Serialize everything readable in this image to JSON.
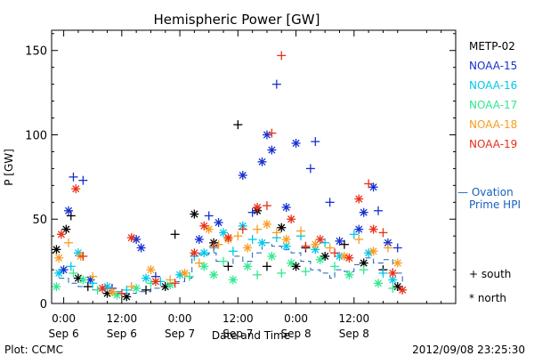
{
  "chart_data": {
    "type": "scatter",
    "title": "Hemispheric Power [GW]",
    "ylabel": "P [GW]",
    "xlabel": "Date and Time",
    "ylim": [
      0,
      162
    ],
    "xlim_hours": [
      -2.5,
      81
    ],
    "yticks": [
      0,
      50,
      100,
      150
    ],
    "xticks": [
      {
        "hour": 0,
        "time": "0:00",
        "date": "Sep 6"
      },
      {
        "hour": 12,
        "time": "12:00",
        "date": "Sep 6"
      },
      {
        "hour": 24,
        "time": "0:00",
        "date": "Sep 7"
      },
      {
        "hour": 36,
        "time": "12:00",
        "date": "Sep 7"
      },
      {
        "hour": 48,
        "time": "0:00",
        "date": "Sep 8"
      },
      {
        "hour": 60,
        "time": "12:00",
        "date": "Sep 8"
      }
    ],
    "legend": {
      "placement": "right",
      "satellites": [
        {
          "name": "METP-02",
          "color": "#000000"
        },
        {
          "name": "NOAA-15",
          "color": "#1530d0"
        },
        {
          "name": "NOAA-16",
          "color": "#00c8e8"
        },
        {
          "name": "NOAA-17",
          "color": "#30e890"
        },
        {
          "name": "NOAA-18",
          "color": "#f89c20"
        },
        {
          "name": "NOAA-19",
          "color": "#e83018"
        }
      ],
      "ovation_label": "Ovation Prime HPI",
      "ovation_lines": [
        "— Ovation",
        "Prime HPI"
      ],
      "ovation_color": "#1560c0",
      "markers": [
        {
          "symbol": "+",
          "label": "south"
        },
        {
          "symbol": "*",
          "label": "north"
        }
      ]
    },
    "footer": {
      "left": "Plot: CCMC",
      "right": "2012/09/08 23:25:30"
    },
    "ovation_step": [
      [
        -1,
        15
      ],
      [
        1,
        12
      ],
      [
        3,
        10
      ],
      [
        6,
        8
      ],
      [
        9,
        7
      ],
      [
        12,
        6
      ],
      [
        15,
        7
      ],
      [
        18,
        9
      ],
      [
        21,
        12
      ],
      [
        23,
        13
      ],
      [
        25,
        15
      ],
      [
        26.5,
        30
      ],
      [
        28,
        29
      ],
      [
        30,
        30
      ],
      [
        31.5,
        25
      ],
      [
        33,
        22
      ],
      [
        35,
        28
      ],
      [
        37,
        25
      ],
      [
        39,
        30
      ],
      [
        41,
        36
      ],
      [
        43,
        34
      ],
      [
        45,
        32
      ],
      [
        47,
        30
      ],
      [
        49,
        25
      ],
      [
        51,
        20
      ],
      [
        53,
        18
      ],
      [
        55,
        15
      ],
      [
        56,
        20
      ],
      [
        58,
        19
      ],
      [
        60,
        23
      ],
      [
        62,
        27
      ],
      [
        64,
        24
      ],
      [
        66,
        26
      ],
      [
        68,
        18
      ],
      [
        70,
        12
      ]
    ],
    "series": [
      {
        "name": "METP-02",
        "points": [
          {
            "x": -1.5,
            "y": 32,
            "m": "*"
          },
          {
            "x": 0.5,
            "y": 44,
            "m": "*"
          },
          {
            "x": 1.5,
            "y": 52,
            "m": "+"
          },
          {
            "x": 3,
            "y": 15,
            "m": "*"
          },
          {
            "x": 5,
            "y": 10,
            "m": "+"
          },
          {
            "x": 9,
            "y": 6,
            "m": "*"
          },
          {
            "x": 13,
            "y": 4,
            "m": "*"
          },
          {
            "x": 17,
            "y": 8,
            "m": "+"
          },
          {
            "x": 21,
            "y": 10,
            "m": "*"
          },
          {
            "x": 23,
            "y": 41,
            "m": "+"
          },
          {
            "x": 27,
            "y": 53,
            "m": "*"
          },
          {
            "x": 31,
            "y": 36,
            "m": "*"
          },
          {
            "x": 34,
            "y": 22,
            "m": "+"
          },
          {
            "x": 36,
            "y": 106,
            "m": "+"
          },
          {
            "x": 40,
            "y": 55,
            "m": "*"
          },
          {
            "x": 42,
            "y": 22,
            "m": "+"
          },
          {
            "x": 45,
            "y": 45,
            "m": "*"
          },
          {
            "x": 48,
            "y": 22,
            "m": "*"
          },
          {
            "x": 50,
            "y": 33,
            "m": "+"
          },
          {
            "x": 54,
            "y": 28,
            "m": "*"
          },
          {
            "x": 58,
            "y": 35,
            "m": "+"
          },
          {
            "x": 62,
            "y": 24,
            "m": "*"
          },
          {
            "x": 66,
            "y": 20,
            "m": "+"
          },
          {
            "x": 69,
            "y": 10,
            "m": "*"
          }
        ]
      },
      {
        "name": "NOAA-15",
        "points": [
          {
            "x": 0,
            "y": 20,
            "m": "*"
          },
          {
            "x": 1,
            "y": 55,
            "m": "*"
          },
          {
            "x": 2,
            "y": 75,
            "m": "+"
          },
          {
            "x": 4,
            "y": 73,
            "m": "+"
          },
          {
            "x": 5.5,
            "y": 14,
            "m": "*"
          },
          {
            "x": 10,
            "y": 9,
            "m": "+"
          },
          {
            "x": 15,
            "y": 38,
            "m": "*"
          },
          {
            "x": 16,
            "y": 33,
            "m": "*"
          },
          {
            "x": 19,
            "y": 16,
            "m": "+"
          },
          {
            "x": 28,
            "y": 38,
            "m": "*"
          },
          {
            "x": 30,
            "y": 52,
            "m": "+"
          },
          {
            "x": 32,
            "y": 48,
            "m": "*"
          },
          {
            "x": 37,
            "y": 76,
            "m": "*"
          },
          {
            "x": 39,
            "y": 54,
            "m": "+"
          },
          {
            "x": 41,
            "y": 84,
            "m": "*"
          },
          {
            "x": 42,
            "y": 100,
            "m": "*"
          },
          {
            "x": 43,
            "y": 91,
            "m": "*"
          },
          {
            "x": 44,
            "y": 130,
            "m": "+"
          },
          {
            "x": 46,
            "y": 57,
            "m": "*"
          },
          {
            "x": 48,
            "y": 95,
            "m": "*"
          },
          {
            "x": 51,
            "y": 80,
            "m": "+"
          },
          {
            "x": 52,
            "y": 96,
            "m": "+"
          },
          {
            "x": 55,
            "y": 60,
            "m": "+"
          },
          {
            "x": 57,
            "y": 37,
            "m": "*"
          },
          {
            "x": 61,
            "y": 44,
            "m": "*"
          },
          {
            "x": 62,
            "y": 54,
            "m": "*"
          },
          {
            "x": 64,
            "y": 69,
            "m": "*"
          },
          {
            "x": 65,
            "y": 55,
            "m": "+"
          },
          {
            "x": 67,
            "y": 36,
            "m": "*"
          },
          {
            "x": 69,
            "y": 33,
            "m": "+"
          }
        ]
      },
      {
        "name": "NOAA-16",
        "points": [
          {
            "x": -1,
            "y": 18,
            "m": "*"
          },
          {
            "x": 1.5,
            "y": 22,
            "m": "+"
          },
          {
            "x": 3,
            "y": 30,
            "m": "*"
          },
          {
            "x": 6,
            "y": 12,
            "m": "+"
          },
          {
            "x": 9,
            "y": 10,
            "m": "*"
          },
          {
            "x": 13,
            "y": 8,
            "m": "+"
          },
          {
            "x": 17,
            "y": 15,
            "m": "*"
          },
          {
            "x": 20,
            "y": 13,
            "m": "+"
          },
          {
            "x": 24,
            "y": 17,
            "m": "*"
          },
          {
            "x": 27,
            "y": 28,
            "m": "+"
          },
          {
            "x": 29,
            "y": 30,
            "m": "*"
          },
          {
            "x": 31,
            "y": 33,
            "m": "+"
          },
          {
            "x": 33,
            "y": 42,
            "m": "*"
          },
          {
            "x": 35,
            "y": 31,
            "m": "+"
          },
          {
            "x": 37,
            "y": 46,
            "m": "*"
          },
          {
            "x": 39,
            "y": 38,
            "m": "+"
          },
          {
            "x": 41,
            "y": 36,
            "m": "*"
          },
          {
            "x": 44,
            "y": 39,
            "m": "+"
          },
          {
            "x": 46,
            "y": 34,
            "m": "*"
          },
          {
            "x": 49,
            "y": 40,
            "m": "+"
          },
          {
            "x": 52,
            "y": 32,
            "m": "*"
          },
          {
            "x": 54,
            "y": 36,
            "m": "+"
          },
          {
            "x": 57,
            "y": 28,
            "m": "*"
          },
          {
            "x": 60,
            "y": 41,
            "m": "+"
          },
          {
            "x": 63,
            "y": 30,
            "m": "*"
          },
          {
            "x": 66,
            "y": 18,
            "m": "+"
          },
          {
            "x": 68,
            "y": 14,
            "m": "*"
          }
        ]
      },
      {
        "name": "NOAA-17",
        "points": [
          {
            "x": -1.5,
            "y": 10,
            "m": "*"
          },
          {
            "x": 2,
            "y": 18,
            "m": "+"
          },
          {
            "x": 4,
            "y": 14,
            "m": "*"
          },
          {
            "x": 7,
            "y": 8,
            "m": "+"
          },
          {
            "x": 11,
            "y": 5,
            "m": "*"
          },
          {
            "x": 15,
            "y": 9,
            "m": "*"
          },
          {
            "x": 18,
            "y": 12,
            "m": "+"
          },
          {
            "x": 22,
            "y": 11,
            "m": "*"
          },
          {
            "x": 26,
            "y": 16,
            "m": "+"
          },
          {
            "x": 29,
            "y": 22,
            "m": "*"
          },
          {
            "x": 31,
            "y": 17,
            "m": "*"
          },
          {
            "x": 33,
            "y": 25,
            "m": "+"
          },
          {
            "x": 35,
            "y": 14,
            "m": "*"
          },
          {
            "x": 38,
            "y": 22,
            "m": "*"
          },
          {
            "x": 40,
            "y": 17,
            "m": "+"
          },
          {
            "x": 43,
            "y": 28,
            "m": "*"
          },
          {
            "x": 45,
            "y": 18,
            "m": "+"
          },
          {
            "x": 47,
            "y": 24,
            "m": "*"
          },
          {
            "x": 50,
            "y": 19,
            "m": "+"
          },
          {
            "x": 53,
            "y": 26,
            "m": "*"
          },
          {
            "x": 56,
            "y": 22,
            "m": "+"
          },
          {
            "x": 59,
            "y": 17,
            "m": "*"
          },
          {
            "x": 62,
            "y": 20,
            "m": "+"
          },
          {
            "x": 65,
            "y": 12,
            "m": "*"
          },
          {
            "x": 68,
            "y": 9,
            "m": "+"
          }
        ]
      },
      {
        "name": "NOAA-18",
        "points": [
          {
            "x": -1,
            "y": 27,
            "m": "*"
          },
          {
            "x": 1,
            "y": 36,
            "m": "+"
          },
          {
            "x": 3.5,
            "y": 28,
            "m": "*"
          },
          {
            "x": 6,
            "y": 16,
            "m": "+"
          },
          {
            "x": 10,
            "y": 7,
            "m": "*"
          },
          {
            "x": 14,
            "y": 10,
            "m": "+"
          },
          {
            "x": 18,
            "y": 20,
            "m": "*"
          },
          {
            "x": 22,
            "y": 14,
            "m": "+"
          },
          {
            "x": 25,
            "y": 18,
            "m": "*"
          },
          {
            "x": 28,
            "y": 24,
            "m": "+"
          },
          {
            "x": 30,
            "y": 44,
            "m": "*"
          },
          {
            "x": 32,
            "y": 35,
            "m": "+"
          },
          {
            "x": 34,
            "y": 38,
            "m": "*"
          },
          {
            "x": 36,
            "y": 40,
            "m": "+"
          },
          {
            "x": 38,
            "y": 33,
            "m": "*"
          },
          {
            "x": 40,
            "y": 44,
            "m": "+"
          },
          {
            "x": 42,
            "y": 47,
            "m": "*"
          },
          {
            "x": 44,
            "y": 42,
            "m": "+"
          },
          {
            "x": 46,
            "y": 38,
            "m": "*"
          },
          {
            "x": 49,
            "y": 43,
            "m": "+"
          },
          {
            "x": 52,
            "y": 35,
            "m": "*"
          },
          {
            "x": 55,
            "y": 33,
            "m": "+"
          },
          {
            "x": 58,
            "y": 28,
            "m": "*"
          },
          {
            "x": 61,
            "y": 38,
            "m": "+"
          },
          {
            "x": 64,
            "y": 31,
            "m": "*"
          },
          {
            "x": 67,
            "y": 33,
            "m": "+"
          },
          {
            "x": 69,
            "y": 24,
            "m": "*"
          }
        ]
      },
      {
        "name": "NOAA-19",
        "points": [
          {
            "x": -0.5,
            "y": 41,
            "m": "*"
          },
          {
            "x": 2.5,
            "y": 68,
            "m": "*"
          },
          {
            "x": 4,
            "y": 28,
            "m": "+"
          },
          {
            "x": 8,
            "y": 9,
            "m": "*"
          },
          {
            "x": 12,
            "y": 6,
            "m": "+"
          },
          {
            "x": 14,
            "y": 39,
            "m": "*"
          },
          {
            "x": 19,
            "y": 13,
            "m": "*"
          },
          {
            "x": 23,
            "y": 12,
            "m": "+"
          },
          {
            "x": 27,
            "y": 30,
            "m": "*"
          },
          {
            "x": 29,
            "y": 46,
            "m": "*"
          },
          {
            "x": 31,
            "y": 34,
            "m": "+"
          },
          {
            "x": 34,
            "y": 39,
            "m": "*"
          },
          {
            "x": 37,
            "y": 44,
            "m": "+"
          },
          {
            "x": 40,
            "y": 57,
            "m": "*"
          },
          {
            "x": 42,
            "y": 58,
            "m": "+"
          },
          {
            "x": 43,
            "y": 101,
            "m": "+"
          },
          {
            "x": 45,
            "y": 147,
            "m": "+"
          },
          {
            "x": 47,
            "y": 50,
            "m": "*"
          },
          {
            "x": 50,
            "y": 34,
            "m": "+"
          },
          {
            "x": 53,
            "y": 38,
            "m": "*"
          },
          {
            "x": 56,
            "y": 30,
            "m": "+"
          },
          {
            "x": 59,
            "y": 27,
            "m": "*"
          },
          {
            "x": 61,
            "y": 62,
            "m": "*"
          },
          {
            "x": 63,
            "y": 71,
            "m": "+"
          },
          {
            "x": 64,
            "y": 44,
            "m": "*"
          },
          {
            "x": 66,
            "y": 42,
            "m": "+"
          },
          {
            "x": 68,
            "y": 18,
            "m": "*"
          },
          {
            "x": 70,
            "y": 8,
            "m": "*"
          }
        ]
      }
    ]
  }
}
